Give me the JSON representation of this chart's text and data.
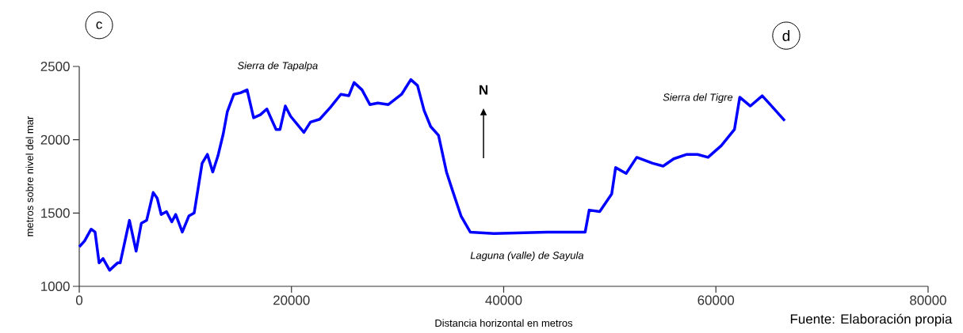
{
  "chart_data": {
    "type": "line",
    "xlabel": "Distancia horizontal en metros",
    "ylabel": "metros sobre nivel del mar",
    "xlim": [
      0,
      80000
    ],
    "ylim": [
      1000,
      2500
    ],
    "xticks": [
      0,
      20000,
      40000,
      60000,
      80000
    ],
    "yticks": [
      1000,
      1500,
      2000,
      2500
    ],
    "color": "#0000ff",
    "x": [
      0,
      500,
      1120,
      1490,
      1870,
      2240,
      2860,
      3610,
      3860,
      4730,
      5360,
      5850,
      6350,
      6970,
      7350,
      7720,
      8220,
      8720,
      9090,
      9710,
      10330,
      10830,
      11580,
      12080,
      12580,
      13070,
      13570,
      13950,
      14570,
      15190,
      15820,
      16430,
      17060,
      17680,
      18550,
      18920,
      19420,
      19920,
      21170,
      21790,
      22660,
      23660,
      24650,
      25400,
      25900,
      26650,
      27390,
      28140,
      29130,
      30380,
      31250,
      31880,
      32500,
      33120,
      33860,
      34610,
      35240,
      35980,
      36850,
      39090,
      44070,
      47680,
      48060,
      49050,
      50180,
      50550,
      51540,
      52540,
      54030,
      55030,
      56030,
      57270,
      58270,
      59260,
      60510,
      61750,
      62250,
      63250,
      64370,
      65120,
      66490
    ],
    "values": [
      1270,
      1310,
      1390,
      1370,
      1160,
      1190,
      1110,
      1160,
      1160,
      1450,
      1240,
      1430,
      1450,
      1640,
      1600,
      1490,
      1510,
      1440,
      1490,
      1370,
      1480,
      1500,
      1840,
      1900,
      1780,
      1890,
      2040,
      2190,
      2310,
      2320,
      2340,
      2150,
      2170,
      2210,
      2070,
      2070,
      2230,
      2160,
      2050,
      2120,
      2140,
      2220,
      2310,
      2300,
      2390,
      2340,
      2240,
      2250,
      2240,
      2310,
      2410,
      2370,
      2200,
      2090,
      2030,
      1780,
      1640,
      1480,
      1370,
      1360,
      1370,
      1370,
      1520,
      1510,
      1630,
      1810,
      1770,
      1880,
      1840,
      1820,
      1870,
      1900,
      1900,
      1880,
      1960,
      2070,
      2290,
      2230,
      2300,
      2240,
      2130
    ],
    "annotations": [
      "*Sierra de Tapalpa*",
      "*Sierra del Tigre*",
      "*Laguna (valle) de Sayula*",
      "c",
      "d",
      "N",
      "Fuente: Elaboración propia"
    ]
  }
}
